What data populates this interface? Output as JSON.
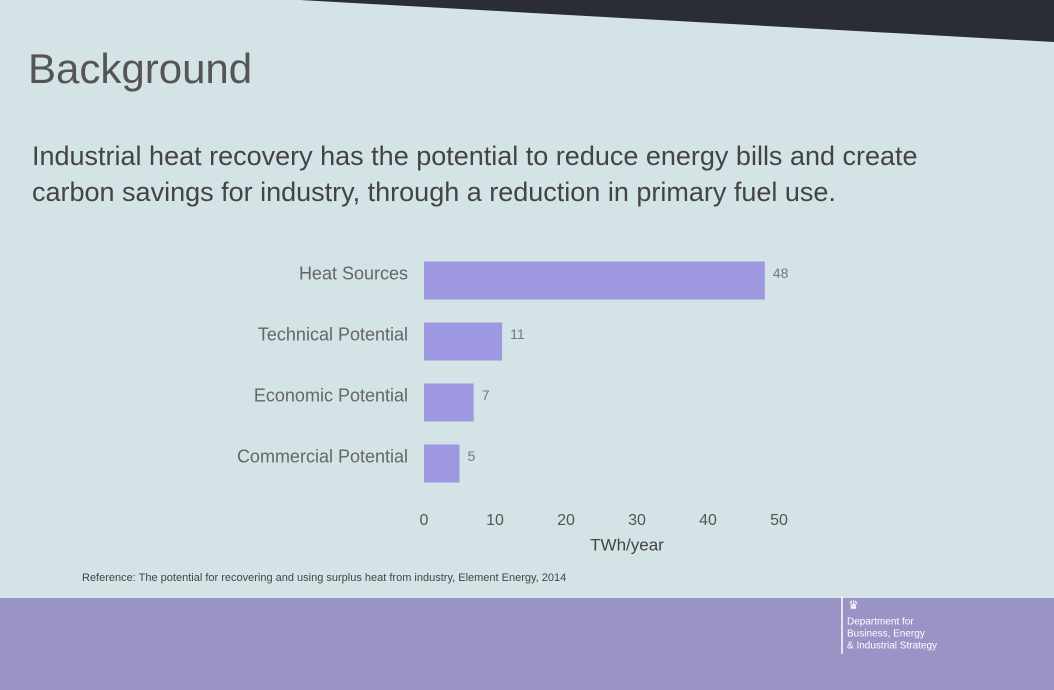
{
  "slide": {
    "title": "Background",
    "body": [
      "Industrial heat recovery has the potential to reduce energy bills and create",
      "carbon savings for industry, through a reduction in primary fuel use."
    ],
    "reference": "Reference: The potential for recovering and using surplus heat from industry, Element Energy, 2014",
    "logo": [
      "Department for",
      "Business, Energy",
      "& Industrial Strategy"
    ]
  },
  "chart_data": {
    "type": "hbar",
    "categories": [
      "Heat Sources",
      "Technical Potential",
      "Economic Potential",
      "Commercial Potential"
    ],
    "values": [
      48,
      11,
      7,
      5
    ],
    "color": "#9d98e0",
    "xlim": [
      0,
      50
    ],
    "xticks": [
      0,
      10,
      20,
      30,
      40,
      50
    ],
    "x_label": "TWh/year"
  }
}
